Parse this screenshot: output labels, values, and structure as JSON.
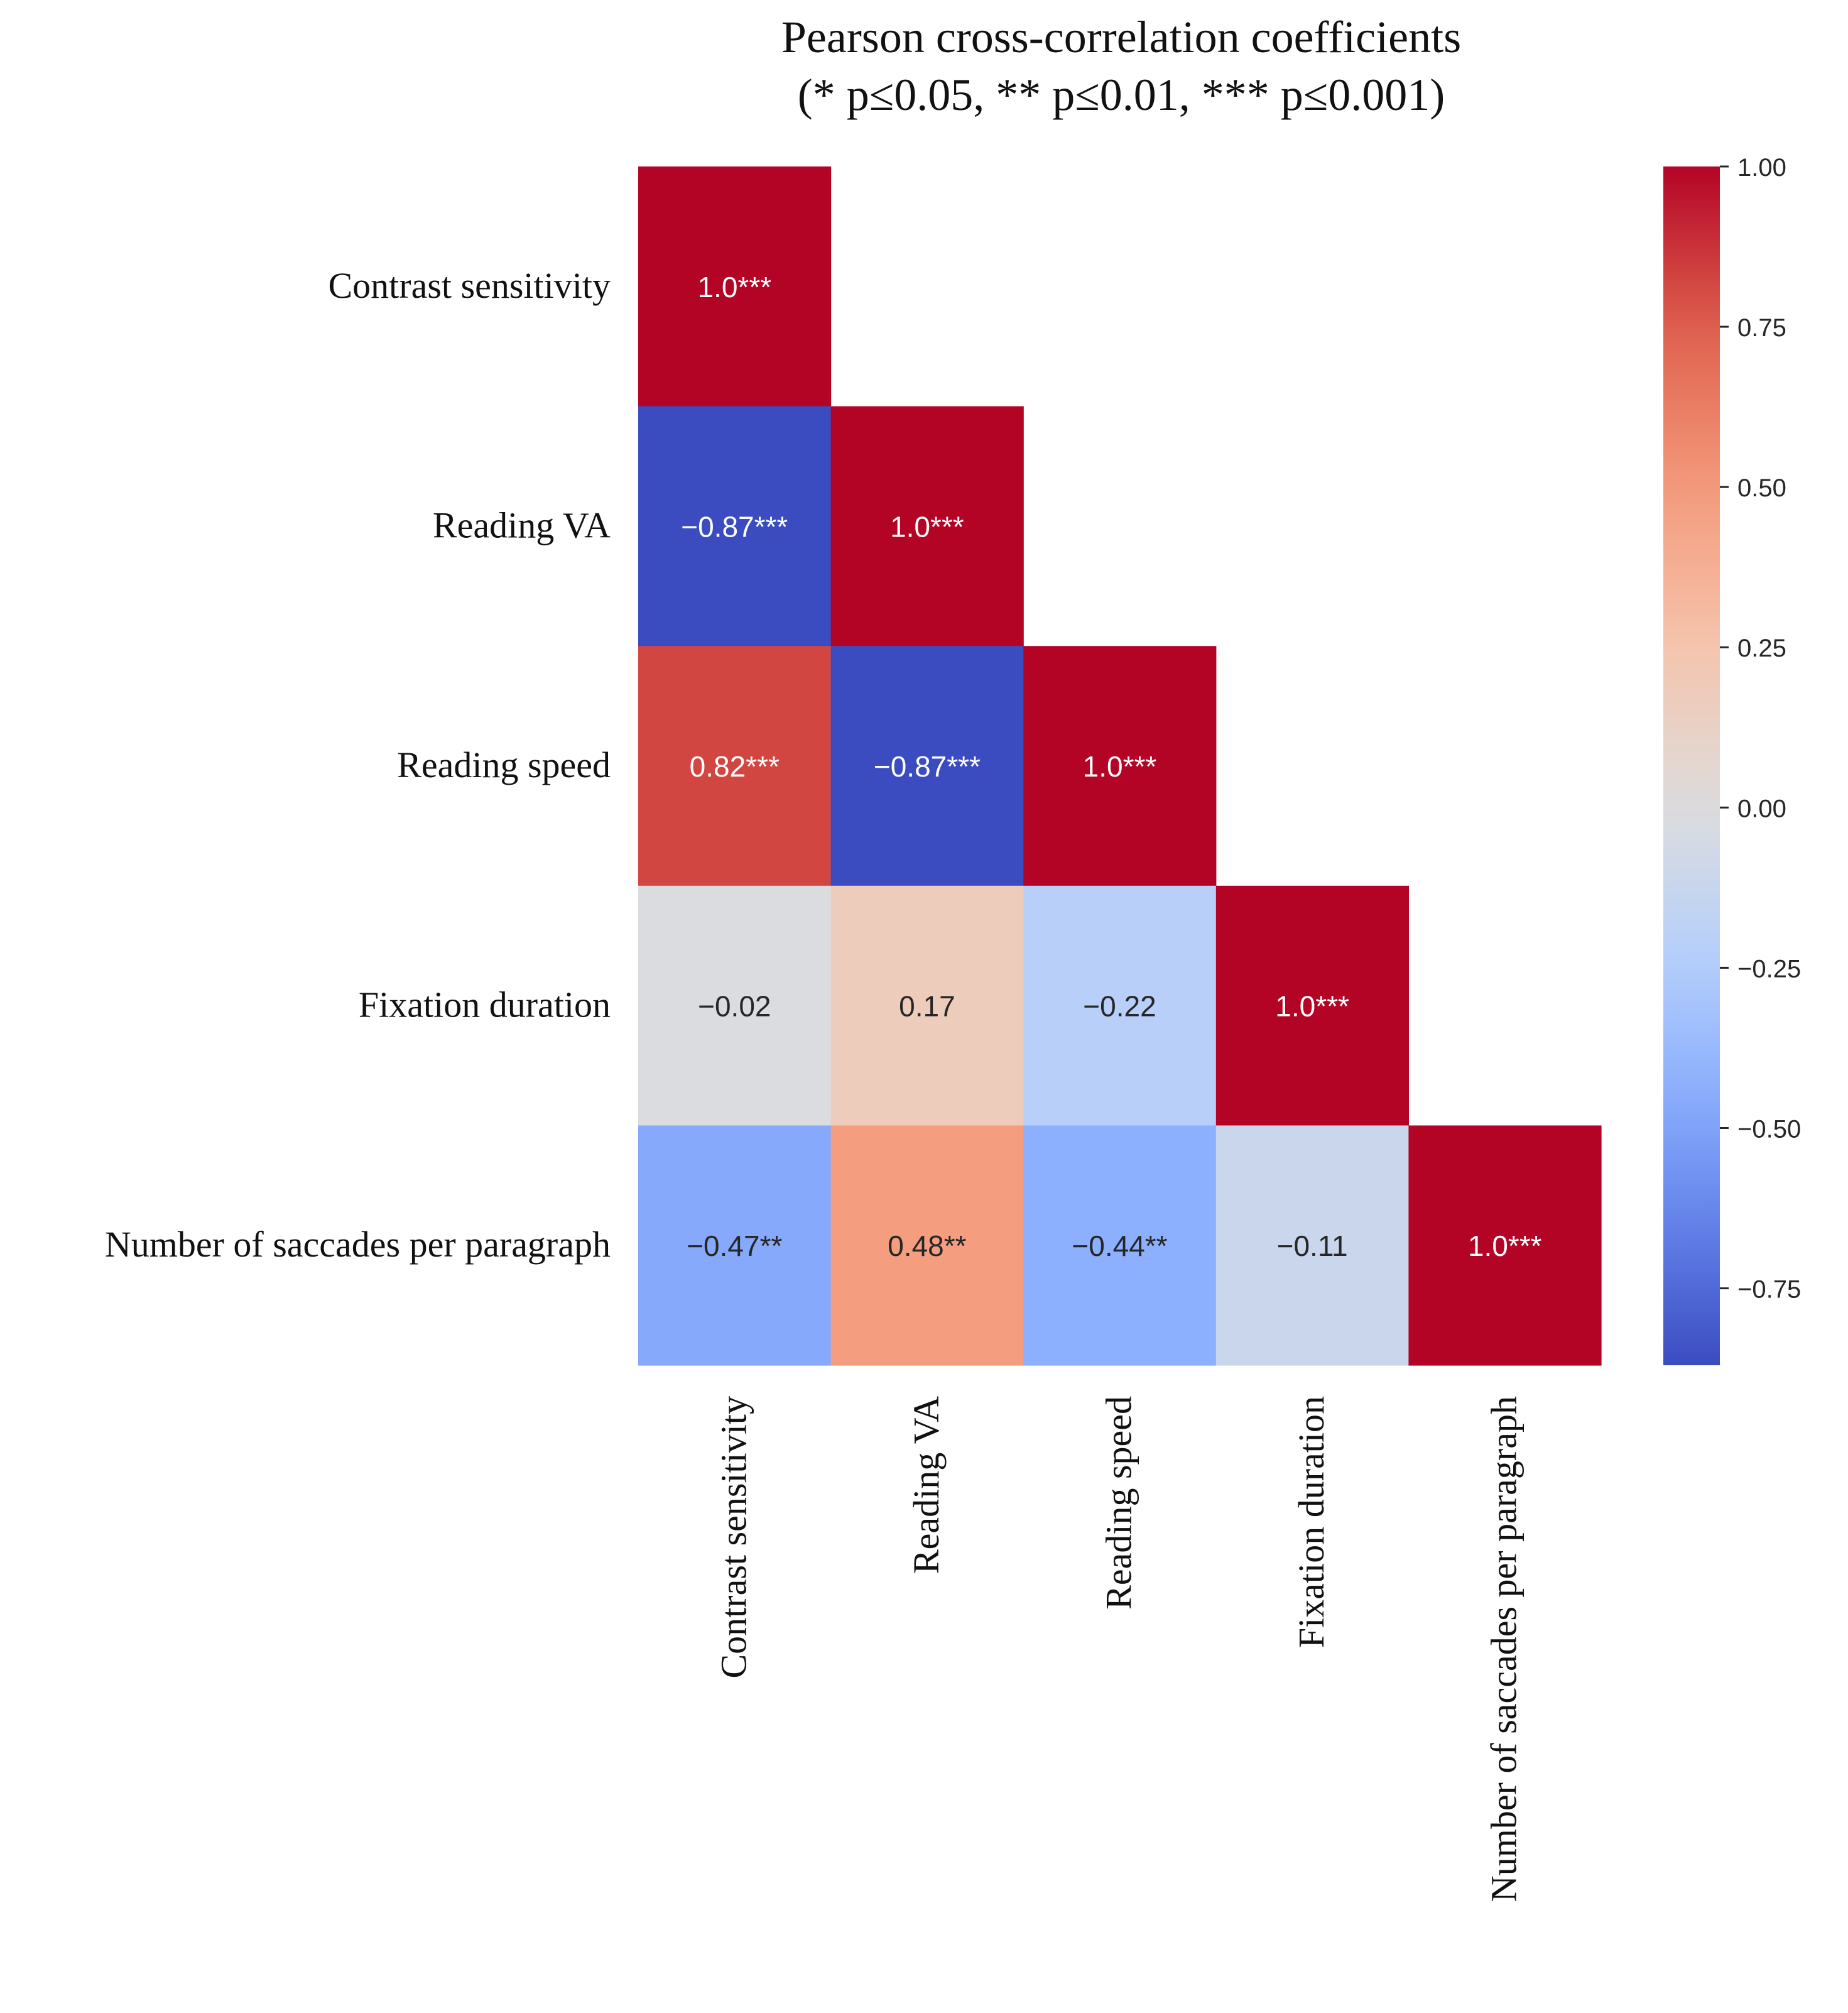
{
  "chart_data": {
    "type": "heatmap",
    "title": "Pearson cross-correlation coefficients",
    "subtitle": "(* p≤0.05, ** p≤0.01, *** p≤0.001)",
    "row_labels": [
      "Contrast sensitivity",
      "Reading VA",
      "Reading speed",
      "Fixation duration",
      "Number of saccades per paragraph"
    ],
    "col_labels": [
      "Contrast sensitivity",
      "Reading VA",
      "Reading speed",
      "Fixation duration",
      "Number of saccades per paragraph"
    ],
    "mask": "upper-triangle",
    "values": [
      [
        1.0,
        null,
        null,
        null,
        null
      ],
      [
        -0.87,
        1.0,
        null,
        null,
        null
      ],
      [
        0.82,
        -0.87,
        1.0,
        null,
        null
      ],
      [
        -0.02,
        0.17,
        -0.22,
        1.0,
        null
      ],
      [
        -0.47,
        0.48,
        -0.44,
        -0.11,
        1.0
      ]
    ],
    "cell_labels": [
      [
        "1.0***",
        null,
        null,
        null,
        null
      ],
      [
        "−0.87***",
        "1.0***",
        null,
        null,
        null
      ],
      [
        "0.82***",
        "−0.87***",
        "1.0***",
        null,
        null
      ],
      [
        "−0.02",
        "0.17",
        "−0.22",
        "1.0***",
        null
      ],
      [
        "−0.47**",
        "0.48**",
        "−0.44**",
        "−0.11",
        "1.0***"
      ]
    ],
    "colormap": "coolwarm",
    "colorbar": {
      "range": [
        -0.87,
        1.0
      ],
      "ticks": [
        1.0,
        0.75,
        0.5,
        0.25,
        0.0,
        -0.25,
        -0.5,
        -0.75
      ],
      "tick_labels": [
        "1.00",
        "0.75",
        "0.50",
        "0.25",
        "0.00",
        "−0.25",
        "−0.50",
        "−0.75"
      ],
      "position": "right"
    },
    "grid": false
  }
}
